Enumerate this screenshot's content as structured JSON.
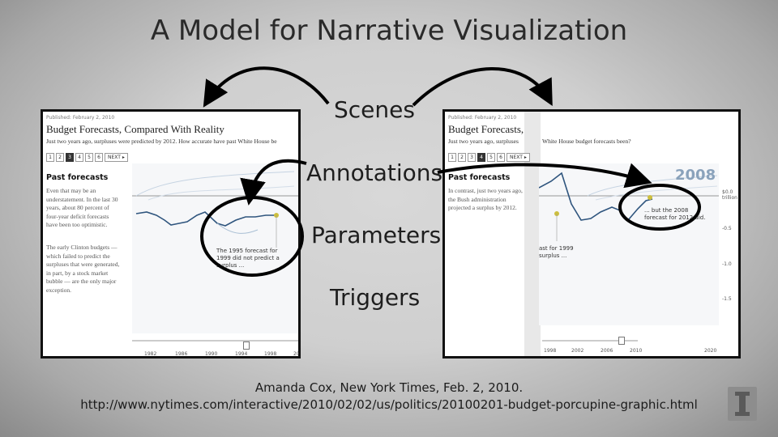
{
  "slide": {
    "title": "A Model for Narrative Visualization",
    "labels": [
      "Scenes",
      "Annotations",
      "Parameters",
      "Triggers"
    ],
    "caption_line1": "Amanda Cox, New York Times, Feb. 2, 2010.",
    "caption_line2": "http://www.nytimes.com/interactive/2010/02/02/us/politics/20100201-budget-porcupine-graphic.html"
  },
  "left_shot": {
    "published": "Published: February 2, 2010",
    "headline": "Budget Forecasts, Compared With Reality",
    "subhead": "Just two years ago, surpluses were predicted by 2012. How accurate have past White House be",
    "pager": [
      "1",
      "2",
      "3",
      "4",
      "5",
      "6",
      "NEXT ▸"
    ],
    "active_page": "3",
    "side_title": "Past forecasts",
    "side_text_1": "Even that may be an understatement. In the last 30 years, about 80 percent of four-year deficit forecasts have been too optimistic.",
    "side_text_2": "The early Clinton budgets — which failed to predict the surpluses that were generated, in part, by a stock market bubble — are the only major exception.",
    "annotation": "The 1995 forecast for 1999 did not predict a surplus ...",
    "x_ticks": [
      "1982",
      "1986",
      "1990",
      "1994",
      "1998",
      "20"
    ]
  },
  "right_shot": {
    "published": "Published: February 2, 2010",
    "headline": "Budget Forecasts,",
    "subhead_left": "Just two years ago, surpluses",
    "subhead_right": "White House budget forecasts been?",
    "pager": [
      "1",
      "2",
      "3",
      "4",
      "5",
      "6",
      "NEXT ▸"
    ],
    "active_page": "4",
    "side_title": "Past forecasts",
    "side_text": "In contrast, just two years ago, the Bush administration projected a surplus by 2012.",
    "year_label": "2008",
    "annotation": "... but the 2008 forecast for 2012 did.",
    "partial_annotation": "ast for 1999 surplus ...",
    "y_ticks": [
      "$0.0 trillion",
      "-0.5",
      "-1.0",
      "-1.5"
    ],
    "x_ticks": [
      "1998",
      "2002",
      "2006",
      "2010",
      "2020"
    ]
  }
}
